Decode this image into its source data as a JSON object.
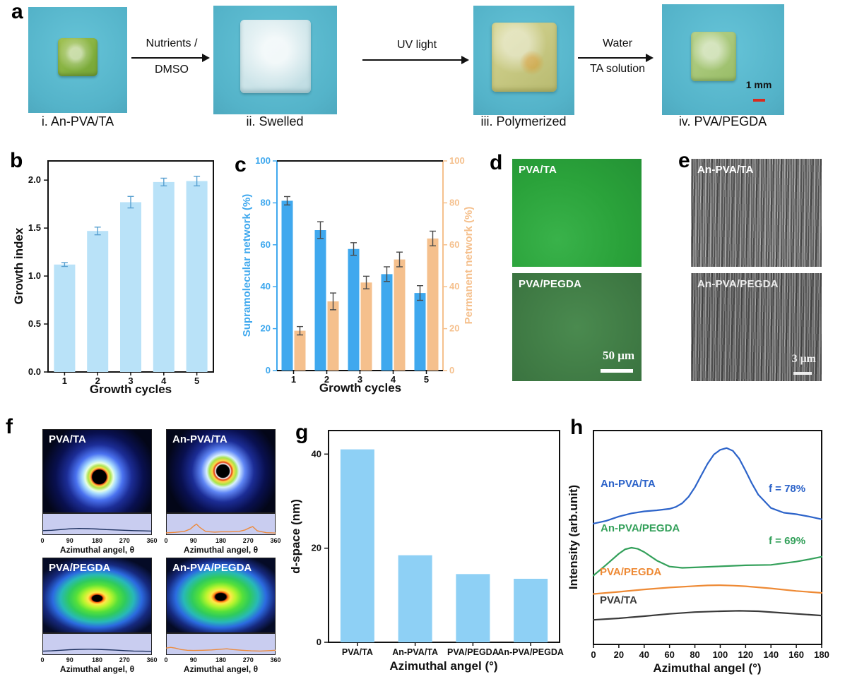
{
  "panel_a": {
    "letter": "a",
    "steps": [
      {
        "caption": "i. An-PVA/TA"
      },
      {
        "caption": "ii. Swelled"
      },
      {
        "caption": "iii. Polymerized"
      },
      {
        "caption": "iv. PVA/PEGDA"
      }
    ],
    "arrows": [
      {
        "top": "Nutrients /",
        "bottom": "DMSO"
      },
      {
        "top": "UV light",
        "bottom": ""
      },
      {
        "top": "Water",
        "bottom": "TA solution"
      }
    ],
    "scale_bar_label": "1 mm"
  },
  "panel_d": {
    "letter": "d",
    "images": [
      {
        "label": "PVA/TA"
      },
      {
        "label": "PVA/PEGDA",
        "scale_bar": "50 μm"
      }
    ]
  },
  "panel_e": {
    "letter": "e",
    "images": [
      {
        "label": "An-PVA/TA"
      },
      {
        "label": "An-PVA/PEGDA",
        "scale_bar": "3 μm"
      }
    ]
  },
  "chart_data": [
    {
      "id": "b",
      "letter": "b",
      "type": "bar",
      "categories": [
        "1",
        "2",
        "3",
        "4",
        "5"
      ],
      "values": [
        1.12,
        1.47,
        1.77,
        1.98,
        1.99
      ],
      "errors": [
        0.02,
        0.04,
        0.06,
        0.04,
        0.05
      ],
      "xlabel": "Growth cycles",
      "ylabel": "Growth index",
      "ylim": [
        0,
        2.2
      ],
      "yticks": [
        0,
        0.5,
        1,
        1.5,
        2
      ],
      "bar_color": "#b9e2f8",
      "error_color": "#58a0d0",
      "grid": false
    },
    {
      "id": "c",
      "letter": "c",
      "type": "bar-dual-axis",
      "categories": [
        "1",
        "2",
        "3",
        "4",
        "5"
      ],
      "xlabel": "Growth cycles",
      "ylim": [
        0,
        100
      ],
      "yticks": [
        0,
        20,
        40,
        60,
        80,
        100
      ],
      "error_color": "#4a4a4a",
      "series": [
        {
          "name": "Supramolecular network (%)",
          "axis": "left",
          "color": "#3fa8ee",
          "values": [
            81,
            67,
            58,
            46,
            37
          ],
          "errors": [
            2,
            4,
            3,
            3.5,
            3.5
          ]
        },
        {
          "name": "Permanent network (%)",
          "axis": "right",
          "color": "#f5c08d",
          "values": [
            19,
            33,
            42,
            53,
            63
          ],
          "errors": [
            2,
            4,
            3,
            3.5,
            3.5
          ]
        }
      ]
    },
    {
      "id": "f",
      "letter": "f",
      "type": "scattering-patterns-with-azimuthal-profiles",
      "strip_bg": "#c9cdf0",
      "subpanels": [
        {
          "label": "PVA/TA",
          "pattern": "iso-small",
          "curve_color": "#1c2f5e",
          "xlabel": "Azimuthal angel, θ",
          "xticks": [
            0,
            90,
            180,
            270,
            360
          ],
          "x": [
            0,
            30,
            60,
            90,
            120,
            150,
            180,
            210,
            240,
            270,
            300,
            330,
            360
          ],
          "y": [
            0.16,
            0.18,
            0.22,
            0.26,
            0.28,
            0.27,
            0.25,
            0.22,
            0.2,
            0.18,
            0.16,
            0.15,
            0.14
          ]
        },
        {
          "label": "An-PVA/TA",
          "pattern": "aniso-small",
          "curve_color": "#ed8a3c",
          "xlabel": "Azimuthal angel, θ",
          "xticks": [
            0,
            90,
            180,
            270,
            360
          ],
          "x": [
            0,
            30,
            60,
            80,
            90,
            100,
            110,
            130,
            160,
            180,
            210,
            240,
            260,
            275,
            285,
            300,
            330,
            360
          ],
          "y": [
            0.04,
            0.07,
            0.12,
            0.25,
            0.4,
            0.52,
            0.35,
            0.12,
            0.08,
            0.1,
            0.1,
            0.12,
            0.2,
            0.32,
            0.38,
            0.15,
            0.05,
            0.03
          ]
        },
        {
          "label": "PVA/PEGDA",
          "pattern": "iso-large",
          "curve_color": "#1c2f5e",
          "xlabel": "Azimuthal angel, θ",
          "xticks": [
            0,
            90,
            180,
            270,
            360
          ],
          "x": [
            0,
            30,
            60,
            90,
            120,
            150,
            180,
            210,
            240,
            270,
            300,
            330,
            360
          ],
          "y": [
            0.13,
            0.15,
            0.18,
            0.21,
            0.23,
            0.24,
            0.23,
            0.21,
            0.19,
            0.16,
            0.14,
            0.13,
            0.12
          ]
        },
        {
          "label": "An-PVA/PEGDA",
          "pattern": "aniso-large",
          "curve_color": "#ed8a3c",
          "xlabel": "Azimuthal angel, θ",
          "xticks": [
            0,
            90,
            180,
            270,
            360
          ],
          "x": [
            0,
            15,
            30,
            50,
            70,
            90,
            120,
            150,
            180,
            200,
            220,
            250,
            280,
            310,
            340,
            360
          ],
          "y": [
            0.3,
            0.34,
            0.3,
            0.22,
            0.18,
            0.17,
            0.18,
            0.2,
            0.24,
            0.26,
            0.22,
            0.18,
            0.15,
            0.14,
            0.16,
            0.18
          ]
        }
      ]
    },
    {
      "id": "g",
      "letter": "g",
      "type": "bar",
      "categories": [
        "PVA/TA",
        "An-PVA/TA",
        "PVA/PEGDA",
        "An-PVA/PEGDA"
      ],
      "values": [
        41,
        18.5,
        14.5,
        13.5
      ],
      "xlabel": "Azimuthal angel (°)",
      "ylabel": "d-space (nm)",
      "ylim": [
        0,
        45
      ],
      "yticks": [
        0,
        20,
        40
      ],
      "bar_color": "#8ed0f5"
    },
    {
      "id": "h",
      "letter": "h",
      "type": "line",
      "xlabel": "Azimuthal angel (°)",
      "ylabel": "Intensity (arb.unit)",
      "xlim": [
        0,
        180
      ],
      "xticks": [
        0,
        20,
        40,
        60,
        80,
        100,
        120,
        140,
        160,
        180
      ],
      "series": [
        {
          "name": "An-PVA/TA",
          "color": "#2c63c9",
          "annotation": "f = 78%",
          "x": [
            0,
            10,
            20,
            30,
            40,
            50,
            60,
            65,
            70,
            75,
            80,
            85,
            90,
            95,
            100,
            105,
            110,
            115,
            120,
            125,
            130,
            140,
            150,
            160,
            170,
            180
          ],
          "y": [
            0.565,
            0.578,
            0.598,
            0.613,
            0.622,
            0.627,
            0.634,
            0.643,
            0.66,
            0.69,
            0.735,
            0.79,
            0.845,
            0.888,
            0.91,
            0.918,
            0.905,
            0.868,
            0.812,
            0.752,
            0.7,
            0.638,
            0.616,
            0.609,
            0.598,
            0.585
          ]
        },
        {
          "name": "An-PVA/PEGDA",
          "color": "#33a05a",
          "annotation": "f = 69%",
          "x": [
            0,
            10,
            20,
            25,
            30,
            35,
            40,
            50,
            60,
            70,
            80,
            100,
            120,
            140,
            160,
            170,
            180
          ],
          "y": [
            0.322,
            0.372,
            0.424,
            0.445,
            0.452,
            0.447,
            0.432,
            0.392,
            0.364,
            0.358,
            0.36,
            0.365,
            0.37,
            0.372,
            0.387,
            0.398,
            0.41
          ]
        },
        {
          "name": "PVA/PEGDA",
          "color": "#ee8a35",
          "x": [
            0,
            20,
            40,
            60,
            80,
            90,
            100,
            110,
            120,
            140,
            160,
            180
          ],
          "y": [
            0.236,
            0.246,
            0.257,
            0.266,
            0.273,
            0.276,
            0.277,
            0.275,
            0.272,
            0.262,
            0.25,
            0.241
          ]
        },
        {
          "name": "PVA/TA",
          "color": "#3a3a3a",
          "x": [
            0,
            20,
            40,
            60,
            80,
            100,
            115,
            130,
            150,
            170,
            180
          ],
          "y": [
            0.115,
            0.122,
            0.132,
            0.143,
            0.151,
            0.155,
            0.157,
            0.155,
            0.147,
            0.139,
            0.135
          ]
        }
      ]
    }
  ]
}
